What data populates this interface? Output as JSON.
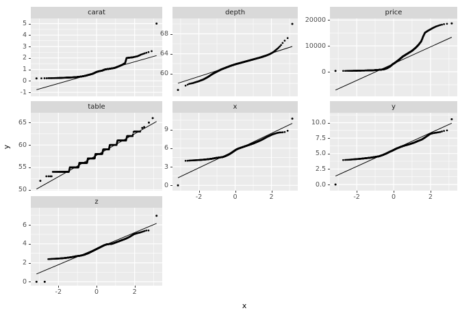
{
  "chart_data": {
    "type": "scatter",
    "subtype": "qq-plot-facet-grid",
    "title": "",
    "xlabel": "x",
    "ylabel": "y",
    "legend": "none",
    "grid": "on",
    "colors": {
      "panel_bg": "#EBEBEB",
      "strip_bg": "#D9D9D9",
      "grid": "#FFFFFF",
      "point": "#000000",
      "line": "#000000",
      "axis_text": "#4D4D4D",
      "strip_text": "#1A1A1A",
      "tick": "#333333"
    },
    "x_axis": {
      "domain": [
        -3.45,
        3.45
      ],
      "breaks": [
        -2,
        0,
        2
      ],
      "labels": [
        "-2",
        "0",
        "2"
      ],
      "minor": [
        -3,
        -1,
        1,
        3
      ]
    },
    "facets": [
      {
        "name": "carat",
        "row": 0,
        "col": 0,
        "show_x_axis": false,
        "ylim": [
          -1.35,
          5.45
        ],
        "y_breaks": [
          5,
          4,
          3,
          2,
          1,
          0,
          -1
        ],
        "y_labels": [
          "5",
          "4",
          "3",
          "2",
          "1",
          "0",
          "-1"
        ],
        "n_points": 800,
        "qq_line": {
          "x1": -3.15,
          "y1": -0.77,
          "x2": 3.15,
          "y2": 2.21
        },
        "curve": [
          [
            -2.9,
            0.225
          ],
          [
            -2.75,
            0.23
          ],
          [
            -2.3,
            0.24
          ],
          [
            -1.9,
            0.26
          ],
          [
            -1.5,
            0.29
          ],
          [
            -1.2,
            0.31
          ],
          [
            -1.0,
            0.34
          ],
          [
            -0.8,
            0.38
          ],
          [
            -0.6,
            0.44
          ],
          [
            -0.4,
            0.53
          ],
          [
            -0.2,
            0.62
          ],
          [
            0,
            0.78
          ],
          [
            0.15,
            0.85
          ],
          [
            0.3,
            0.9
          ],
          [
            0.45,
            1.0
          ],
          [
            0.7,
            1.06
          ],
          [
            0.95,
            1.13
          ],
          [
            1.15,
            1.26
          ],
          [
            1.35,
            1.4
          ],
          [
            1.5,
            1.55
          ],
          [
            1.58,
            2.0
          ],
          [
            1.9,
            2.06
          ],
          [
            2.15,
            2.15
          ],
          [
            2.35,
            2.3
          ],
          [
            2.55,
            2.42
          ],
          [
            2.8,
            2.55
          ],
          [
            2.95,
            2.62
          ]
        ],
        "outliers": [
          [
            -3.15,
            0.22
          ],
          [
            3.15,
            5.0
          ]
        ]
      },
      {
        "name": "depth",
        "row": 0,
        "col": 1,
        "show_x_axis": false,
        "ylim": [
          55.4,
          71.1
        ],
        "y_breaks": [
          68,
          64,
          60
        ],
        "y_labels": [
          "68",
          "64",
          "60"
        ],
        "n_points": 800,
        "qq_line": {
          "x1": -3.15,
          "y1": 58.05,
          "x2": 3.15,
          "y2": 65.45
        },
        "curve": [
          [
            -2.85,
            57.4
          ],
          [
            -2.7,
            57.6
          ],
          [
            -2.55,
            57.9
          ],
          [
            -2.3,
            58.1
          ],
          [
            -2.0,
            58.45
          ],
          [
            -1.75,
            58.8
          ],
          [
            -1.5,
            59.3
          ],
          [
            -1.25,
            59.9
          ],
          [
            -1.0,
            60.4
          ],
          [
            -0.75,
            60.85
          ],
          [
            -0.5,
            61.2
          ],
          [
            -0.25,
            61.55
          ],
          [
            0,
            61.85
          ],
          [
            0.25,
            62.1
          ],
          [
            0.5,
            62.35
          ],
          [
            0.75,
            62.6
          ],
          [
            1.0,
            62.85
          ],
          [
            1.25,
            63.1
          ],
          [
            1.5,
            63.35
          ],
          [
            1.7,
            63.6
          ],
          [
            1.9,
            63.9
          ],
          [
            2.1,
            64.3
          ],
          [
            2.3,
            64.9
          ],
          [
            2.5,
            65.6
          ],
          [
            2.65,
            66.3
          ],
          [
            2.8,
            66.9
          ],
          [
            2.95,
            67.3
          ]
        ],
        "outliers": [
          [
            -3.15,
            56.7
          ],
          [
            3.15,
            70.0
          ]
        ]
      },
      {
        "name": "price",
        "row": 0,
        "col": 2,
        "show_x_axis": false,
        "ylim": [
          -9500,
          20600
        ],
        "y_breaks": [
          20000,
          10000,
          0
        ],
        "y_labels": [
          "20000",
          "10000",
          "0"
        ],
        "n_points": 800,
        "qq_line": {
          "x1": -3.15,
          "y1": -7080,
          "x2": 3.15,
          "y2": 13350
        },
        "curve": [
          [
            -2.85,
            345
          ],
          [
            -2.4,
            370
          ],
          [
            -2.0,
            410
          ],
          [
            -1.6,
            460
          ],
          [
            -1.3,
            520
          ],
          [
            -1.05,
            600
          ],
          [
            -0.85,
            700
          ],
          [
            -0.65,
            850
          ],
          [
            -0.5,
            1000
          ],
          [
            -0.35,
            1400
          ],
          [
            -0.2,
            2000
          ],
          [
            -0.05,
            2900
          ],
          [
            0.1,
            3600
          ],
          [
            0.3,
            4700
          ],
          [
            0.5,
            5900
          ],
          [
            0.75,
            7000
          ],
          [
            1.0,
            8100
          ],
          [
            1.2,
            9300
          ],
          [
            1.35,
            10400
          ],
          [
            1.5,
            11800
          ],
          [
            1.6,
            13600
          ],
          [
            1.7,
            15100
          ],
          [
            1.85,
            15800
          ],
          [
            2.0,
            16400
          ],
          [
            2.15,
            17000
          ],
          [
            2.3,
            17500
          ],
          [
            2.5,
            18000
          ],
          [
            2.7,
            18350
          ],
          [
            2.9,
            18550
          ]
        ],
        "outliers": [
          [
            -3.15,
            320
          ],
          [
            3.15,
            18700
          ]
        ]
      },
      {
        "name": "table",
        "row": 1,
        "col": 0,
        "show_x_axis": false,
        "ylim": [
          49.8,
          67.2
        ],
        "y_breaks": [
          65,
          60,
          55,
          50
        ],
        "y_labels": [
          "65",
          "60",
          "55",
          "50"
        ],
        "n_points": 600,
        "qq_line": {
          "x1": -3.15,
          "y1": 50.15,
          "x2": 3.15,
          "y2": 65.25
        },
        "curve": [
          [
            -2.75,
            53
          ],
          [
            -2.35,
            53
          ],
          [
            -2.3,
            54
          ],
          [
            -1.45,
            54
          ],
          [
            -1.4,
            55
          ],
          [
            -0.95,
            55
          ],
          [
            -0.9,
            56
          ],
          [
            -0.5,
            56
          ],
          [
            -0.45,
            57
          ],
          [
            -0.1,
            57
          ],
          [
            -0.05,
            58
          ],
          [
            0.3,
            58
          ],
          [
            0.35,
            59
          ],
          [
            0.65,
            59
          ],
          [
            0.7,
            60
          ],
          [
            1.05,
            60
          ],
          [
            1.1,
            61
          ],
          [
            1.55,
            61
          ],
          [
            1.6,
            62
          ],
          [
            1.9,
            62
          ],
          [
            1.95,
            63
          ],
          [
            2.3,
            63
          ]
        ],
        "outliers": [
          [
            -2.95,
            52
          ],
          [
            2.4,
            63.8
          ],
          [
            2.5,
            64.0
          ],
          [
            2.75,
            65.0
          ],
          [
            2.95,
            66.0
          ]
        ]
      },
      {
        "name": "x",
        "row": 1,
        "col": 1,
        "show_x_axis": true,
        "ylim": [
          -0.85,
          11.7
        ],
        "y_breaks": [
          9,
          6,
          3,
          0
        ],
        "y_labels": [
          "9",
          "6",
          "3",
          "0"
        ],
        "n_points": 800,
        "qq_line": {
          "x1": -3.15,
          "y1": 1.22,
          "x2": 3.15,
          "y2": 9.98
        },
        "curve": [
          [
            -2.76,
            3.95
          ],
          [
            -2.5,
            4.0
          ],
          [
            -2.2,
            4.05
          ],
          [
            -1.9,
            4.1
          ],
          [
            -1.6,
            4.18
          ],
          [
            -1.3,
            4.28
          ],
          [
            -1.05,
            4.42
          ],
          [
            -0.85,
            4.5
          ],
          [
            -0.7,
            4.55
          ],
          [
            -0.55,
            4.7
          ],
          [
            -0.4,
            4.9
          ],
          [
            -0.25,
            5.15
          ],
          [
            -0.1,
            5.45
          ],
          [
            0.05,
            5.75
          ],
          [
            0.2,
            5.95
          ],
          [
            0.4,
            6.15
          ],
          [
            0.6,
            6.35
          ],
          [
            0.8,
            6.55
          ],
          [
            1.0,
            6.75
          ],
          [
            1.2,
            7.0
          ],
          [
            1.4,
            7.25
          ],
          [
            1.6,
            7.55
          ],
          [
            1.75,
            7.8
          ],
          [
            1.9,
            8.0
          ],
          [
            2.05,
            8.2
          ],
          [
            2.2,
            8.35
          ],
          [
            2.4,
            8.5
          ],
          [
            2.6,
            8.55
          ],
          [
            2.75,
            8.6
          ],
          [
            2.9,
            8.8
          ]
        ],
        "outliers": [
          [
            -3.15,
            0.0
          ],
          [
            3.15,
            10.75
          ]
        ]
      },
      {
        "name": "y",
        "row": 1,
        "col": 2,
        "show_x_axis": true,
        "ylim": [
          -1.0,
          11.6
        ],
        "y_breaks": [
          10.0,
          7.5,
          5.0,
          2.5,
          0.0
        ],
        "y_labels": [
          "10.0",
          "7.5",
          "5.0",
          "2.5",
          "0.0"
        ],
        "n_points": 800,
        "qq_line": {
          "x1": -3.15,
          "y1": 1.35,
          "x2": 3.15,
          "y2": 9.91
        },
        "curve": [
          [
            -2.76,
            3.95
          ],
          [
            -2.45,
            4.0
          ],
          [
            -2.1,
            4.08
          ],
          [
            -1.8,
            4.15
          ],
          [
            -1.5,
            4.25
          ],
          [
            -1.2,
            4.35
          ],
          [
            -1.0,
            4.45
          ],
          [
            -0.8,
            4.55
          ],
          [
            -0.6,
            4.75
          ],
          [
            -0.4,
            5.0
          ],
          [
            -0.2,
            5.3
          ],
          [
            -0.05,
            5.5
          ],
          [
            0.15,
            5.8
          ],
          [
            0.4,
            6.1
          ],
          [
            0.6,
            6.3
          ],
          [
            0.85,
            6.5
          ],
          [
            1.1,
            6.75
          ],
          [
            1.3,
            7.0
          ],
          [
            1.55,
            7.3
          ],
          [
            1.7,
            7.6
          ],
          [
            1.9,
            8.0
          ],
          [
            2.0,
            8.2
          ],
          [
            2.15,
            8.3
          ],
          [
            2.35,
            8.4
          ],
          [
            2.55,
            8.5
          ],
          [
            2.7,
            8.65
          ],
          [
            2.9,
            8.75
          ]
        ],
        "outliers": [
          [
            -3.15,
            0.0
          ],
          [
            3.15,
            10.55
          ]
        ]
      },
      {
        "name": "z",
        "row": 2,
        "col": 0,
        "show_x_axis": true,
        "ylim": [
          -0.4,
          7.8
        ],
        "y_breaks": [
          6,
          4,
          2,
          0
        ],
        "y_labels": [
          "6",
          "4",
          "2",
          "0"
        ],
        "n_points": 800,
        "qq_line": {
          "x1": -3.15,
          "y1": 0.83,
          "x2": 3.15,
          "y2": 6.15
        },
        "curve": [
          [
            -2.6,
            2.38
          ],
          [
            -2.3,
            2.42
          ],
          [
            -2.0,
            2.45
          ],
          [
            -1.8,
            2.48
          ],
          [
            -1.6,
            2.52
          ],
          [
            -1.3,
            2.6
          ],
          [
            -1.05,
            2.7
          ],
          [
            -0.85,
            2.75
          ],
          [
            -0.65,
            2.85
          ],
          [
            -0.45,
            3.0
          ],
          [
            -0.25,
            3.2
          ],
          [
            -0.05,
            3.4
          ],
          [
            0.1,
            3.55
          ],
          [
            0.25,
            3.7
          ],
          [
            0.4,
            3.85
          ],
          [
            0.55,
            3.95
          ],
          [
            0.8,
            4.0
          ],
          [
            0.95,
            4.1
          ],
          [
            1.15,
            4.25
          ],
          [
            1.35,
            4.4
          ],
          [
            1.55,
            4.55
          ],
          [
            1.75,
            4.75
          ],
          [
            1.95,
            5.0
          ],
          [
            2.1,
            5.1
          ],
          [
            2.3,
            5.2
          ],
          [
            2.45,
            5.3
          ],
          [
            2.6,
            5.4
          ],
          [
            2.8,
            5.42
          ]
        ],
        "outliers": [
          [
            -3.15,
            0.0
          ],
          [
            -2.72,
            0.0
          ],
          [
            3.15,
            6.95
          ]
        ]
      }
    ]
  }
}
